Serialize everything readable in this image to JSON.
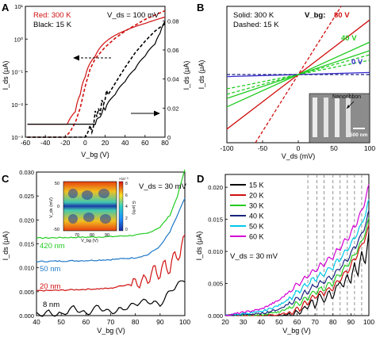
{
  "chart_data": [
    {
      "panel": "A",
      "type": "line",
      "xlabel": "V_bg (V)",
      "ylabel": "I_ds (μA)",
      "ylabel_right": "I_ds (μA)",
      "xlim": [
        -60,
        80
      ],
      "xticks": [
        -60,
        -40,
        -20,
        0,
        20,
        40,
        60,
        80
      ],
      "ylim_left_log": [
        0.001,
        10
      ],
      "yticks_left": [
        "10⁻³",
        "10⁻²",
        "10⁻¹",
        "10⁰",
        "10¹"
      ],
      "ylim_right": [
        0,
        0.09
      ],
      "yticks_right": [
        0,
        0.02,
        0.04,
        0.06,
        0.08
      ],
      "legend": [
        "Red: 300 K",
        "Black: 15 K"
      ],
      "annotation": "V_ds = 100 mV",
      "series": [
        {
          "name": "300 K",
          "axis": "left",
          "x": [
            -58,
            -18,
            -10,
            -5,
            0,
            10,
            20,
            30,
            40,
            50,
            60,
            70,
            80
          ],
          "y": [
            0.0025,
            0.0025,
            0.006,
            0.02,
            0.07,
            0.3,
            0.8,
            1.3,
            1.8,
            2.4,
            3.0,
            3.8,
            4.7
          ]
        },
        {
          "name": "300 K",
          "axis": "right",
          "x": [
            -58,
            -20,
            -15,
            -10,
            -5,
            0,
            5,
            10,
            20,
            30,
            40,
            50,
            60,
            70,
            80
          ],
          "y": [
            0.0,
            0.0,
            0.004,
            0.01,
            0.02,
            0.035,
            0.047,
            0.054,
            0.062,
            0.068,
            0.073,
            0.077,
            0.081,
            0.084,
            0.087
          ]
        },
        {
          "name": "15 K",
          "axis": "left",
          "x": [
            -58,
            5,
            10,
            15,
            20,
            30,
            40,
            50,
            60,
            70,
            75,
            80
          ],
          "y": [
            0.0025,
            0.0025,
            0.0025,
            0.004,
            0.008,
            0.02,
            0.05,
            0.12,
            0.3,
            0.7,
            1.5,
            3.5
          ]
        },
        {
          "name": "15 K",
          "axis": "right",
          "x": [
            -58,
            0,
            5,
            10,
            15,
            20,
            30,
            40,
            50,
            60,
            70,
            80
          ],
          "y": [
            0.0,
            0.0,
            0.005,
            0.012,
            0.018,
            0.026,
            0.037,
            0.048,
            0.058,
            0.066,
            0.073,
            0.078
          ]
        }
      ]
    },
    {
      "panel": "B",
      "type": "line",
      "xlabel": "V_ds (mV)",
      "ylabel": "I_ds (μA)",
      "xlim": [
        -100,
        100
      ],
      "xticks": [
        -100,
        -50,
        0,
        50,
        100
      ],
      "legend": [
        "Solid: 300 K",
        "Dashed: 15 K"
      ],
      "annotation": "V_bg:",
      "inset_label": "Nanoribbon",
      "scale_bar": "500 nm",
      "series": [
        {
          "name": "80 V",
          "style": "solid",
          "x": [
            -100,
            100
          ],
          "y": [
            -1.6,
            1.6
          ]
        },
        {
          "name": "80 V",
          "style": "dashed",
          "x": [
            -60,
            60
          ],
          "y": [
            -2.0,
            2.0
          ]
        },
        {
          "name": "40 V",
          "style": "solid",
          "x": [
            -100,
            100
          ],
          "y": [
            -0.7,
            0.7
          ]
        },
        {
          "name": "40 V",
          "style": "dashed",
          "x": [
            -100,
            100
          ],
          "y": [
            -0.42,
            0.42
          ]
        },
        {
          "name": "0 V",
          "style": "solid",
          "x": [
            -100,
            100
          ],
          "y": [
            -0.06,
            0.06
          ]
        },
        {
          "name": "0 V",
          "style": "dashed",
          "x": [
            -100,
            100
          ],
          "y": [
            0.0,
            0.0
          ]
        },
        {
          "name": "",
          "style": "solid",
          "x": [
            -100,
            100
          ],
          "y": [
            -0.95,
            0.95
          ]
        },
        {
          "name": "",
          "style": "dashed",
          "x": [
            -100,
            100
          ],
          "y": [
            -0.58,
            0.58
          ]
        }
      ],
      "series_labels": [
        "80 V",
        "40 V",
        "0 V"
      ]
    },
    {
      "panel": "C",
      "type": "line",
      "xlabel": "V_bg (V)",
      "ylabel": "I_ds (μA)",
      "xlim": [
        40,
        100
      ],
      "xticks": [
        40,
        50,
        60,
        70,
        80,
        90,
        100
      ],
      "ylim": [
        0,
        0.03
      ],
      "yticks": [
        "0.000",
        "0.005",
        "0.010",
        "0.015",
        "0.020",
        "0.025",
        "0.030"
      ],
      "annotation": "V_ds = 30 mV",
      "inset": {
        "ylabel": "V_ds (mV)",
        "xlabel": "V_bg (V)",
        "xticks": [
          "70",
          "80",
          "90"
        ],
        "yticks": [
          "50",
          "0",
          "-50"
        ],
        "colorbar_label": "G (e²/h)",
        "colorbar_ticks": [
          "8",
          "6",
          "4",
          "2",
          "0"
        ],
        "colorbar_exponent": "×10⁻³"
      },
      "series": [
        {
          "name": "420 nm",
          "x": [
            40,
            50,
            60,
            70,
            80,
            85,
            90,
            94,
            97,
            100
          ],
          "y": [
            0.0162,
            0.0163,
            0.0164,
            0.0165,
            0.0168,
            0.0172,
            0.0185,
            0.021,
            0.025,
            0.0305
          ]
        },
        {
          "name": "50 nm",
          "x": [
            40,
            50,
            60,
            70,
            80,
            85,
            90,
            94,
            97,
            100
          ],
          "y": [
            0.0113,
            0.0114,
            0.0115,
            0.0117,
            0.0121,
            0.0127,
            0.0145,
            0.0175,
            0.021,
            0.0245
          ]
        },
        {
          "name": "20 nm",
          "x": [
            40,
            50,
            60,
            70,
            75,
            80,
            85,
            88,
            90,
            92,
            94,
            96,
            98,
            100
          ],
          "y": [
            0.0052,
            0.0053,
            0.0055,
            0.0057,
            0.0063,
            0.0068,
            0.0076,
            0.0098,
            0.0085,
            0.011,
            0.0095,
            0.013,
            0.0125,
            0.0165
          ]
        },
        {
          "name": "8 nm",
          "x": [
            40,
            45,
            50,
            55,
            60,
            65,
            70,
            75,
            80,
            85,
            90,
            95,
            100
          ],
          "y": [
            0.0002,
            0.0006,
            0.0001,
            0.0017,
            0.0003,
            0.0019,
            0.0006,
            0.0014,
            0.0025,
            0.0031,
            0.0023,
            0.0057,
            0.0076
          ]
        }
      ]
    },
    {
      "panel": "D",
      "type": "line",
      "xlabel": "V_bg (V)",
      "ylabel": "I_ds (μA)",
      "xlim": [
        20,
        100
      ],
      "xticks": [
        20,
        30,
        40,
        50,
        60,
        70,
        80,
        90,
        100
      ],
      "ylim": [
        0,
        0.022
      ],
      "yticks": [
        "0.000",
        "0.005",
        "0.010",
        "0.015",
        "0.020"
      ],
      "annotation": "V_ds = 30 mV",
      "vlines": [
        66,
        71,
        75,
        80,
        84,
        88,
        92,
        96
      ],
      "series": [
        {
          "name": "15 K",
          "x": [
            20,
            40,
            50,
            55,
            60,
            65,
            68,
            70,
            72,
            75,
            78,
            80,
            84,
            86,
            88,
            90,
            92,
            94,
            96,
            98,
            100
          ],
          "y": [
            0.0,
            0.0,
            0.0,
            0.0001,
            0.0004,
            0.0012,
            0.0022,
            0.0014,
            0.0032,
            0.0024,
            0.0036,
            0.003,
            0.0055,
            0.0042,
            0.0066,
            0.005,
            0.0082,
            0.0064,
            0.0098,
            0.0085,
            0.0125
          ]
        },
        {
          "name": "20 K",
          "x": [
            20,
            40,
            50,
            55,
            60,
            65,
            70,
            75,
            80,
            84,
            88,
            92,
            96,
            100
          ],
          "y": [
            0.0,
            0.0,
            0.0001,
            0.0004,
            0.0009,
            0.0019,
            0.003,
            0.0036,
            0.0044,
            0.0058,
            0.007,
            0.0088,
            0.0108,
            0.0138
          ]
        },
        {
          "name": "30 K",
          "x": [
            20,
            40,
            50,
            55,
            60,
            65,
            70,
            75,
            80,
            84,
            88,
            92,
            96,
            100
          ],
          "y": [
            0.0,
            0.0001,
            0.0006,
            0.0012,
            0.0018,
            0.0027,
            0.0037,
            0.0043,
            0.0052,
            0.0065,
            0.0078,
            0.0095,
            0.0115,
            0.0148
          ]
        },
        {
          "name": "40 K",
          "x": [
            20,
            40,
            50,
            55,
            60,
            65,
            70,
            75,
            80,
            84,
            88,
            92,
            96,
            100
          ],
          "y": [
            0.0,
            0.0003,
            0.001,
            0.0018,
            0.0026,
            0.0036,
            0.0046,
            0.0053,
            0.0062,
            0.0075,
            0.0088,
            0.0106,
            0.0126,
            0.016
          ]
        },
        {
          "name": "50 K",
          "x": [
            20,
            40,
            50,
            55,
            60,
            65,
            70,
            75,
            80,
            84,
            88,
            92,
            96,
            100
          ],
          "y": [
            0.0,
            0.0006,
            0.0016,
            0.0026,
            0.0036,
            0.0047,
            0.0058,
            0.0066,
            0.0076,
            0.0089,
            0.0103,
            0.0121,
            0.0142,
            0.0178
          ]
        },
        {
          "name": "60 K",
          "x": [
            20,
            40,
            50,
            55,
            60,
            65,
            70,
            75,
            80,
            84,
            88,
            92,
            96,
            100
          ],
          "y": [
            0.0,
            0.001,
            0.0024,
            0.0036,
            0.0048,
            0.006,
            0.0072,
            0.0081,
            0.0092,
            0.0106,
            0.012,
            0.0139,
            0.0162,
            0.0202
          ]
        }
      ]
    }
  ],
  "colors": {
    "red": "#d01010",
    "black": "#000000",
    "green": "#22cc22",
    "blue": "#1e78c8",
    "navy": "#1a237e",
    "cyan": "#00c8e8",
    "magenta": "#d400d4",
    "purple": "#3a2ad0"
  }
}
